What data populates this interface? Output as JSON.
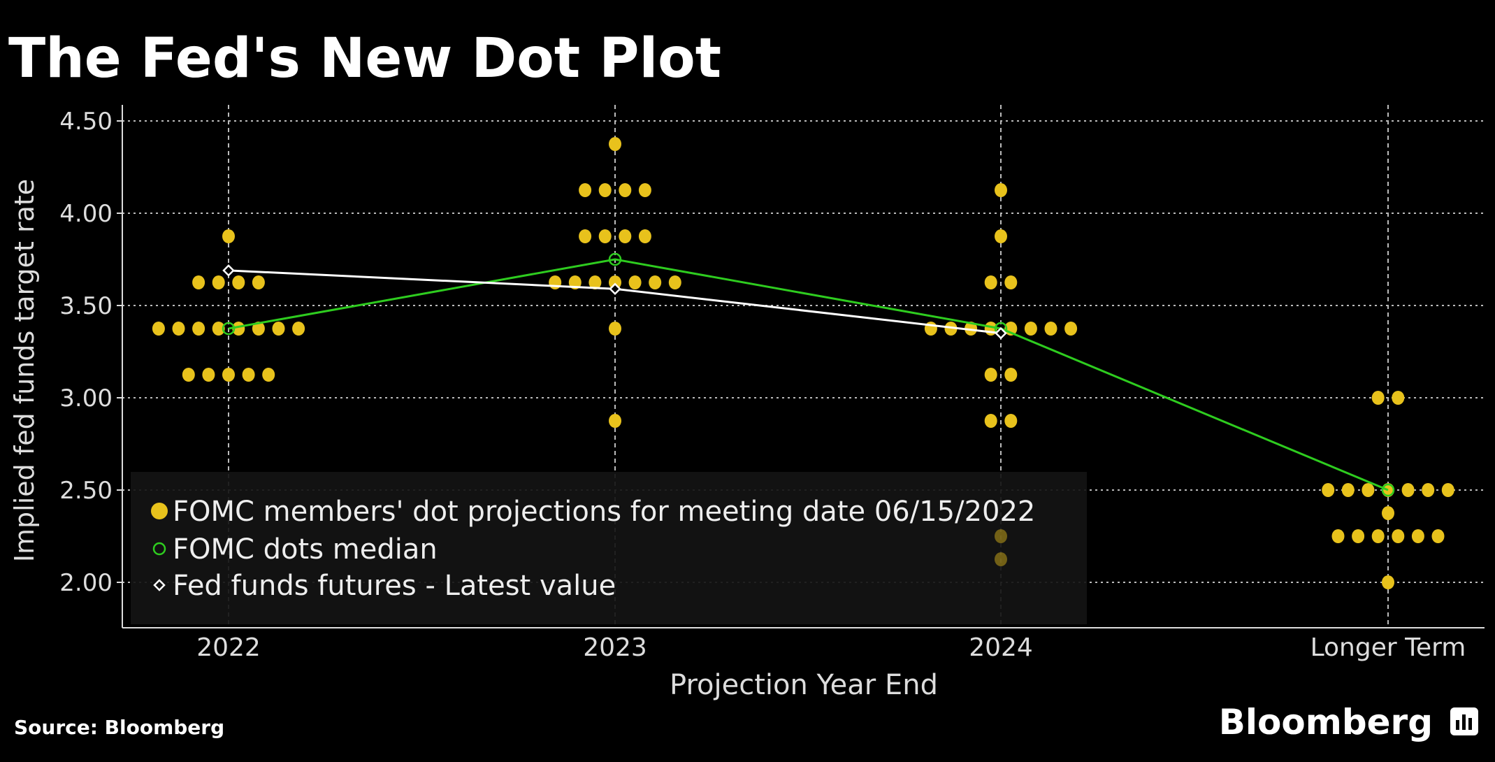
{
  "chart_data": {
    "type": "scatter",
    "title": "The Fed's New Dot Plot",
    "xlabel": "Projection Year End",
    "ylabel": "Implied fed funds target rate",
    "categories": [
      "2022",
      "2023",
      "2024",
      "Longer Term"
    ],
    "ylim": [
      2.0,
      4.5
    ],
    "yticks": [
      "2.00",
      "2.50",
      "3.00",
      "3.50",
      "4.00",
      "4.50"
    ],
    "grid": true,
    "legend_placement": "bottom-left",
    "series": [
      {
        "name": "FOMC members' dot projections for meeting date 06/15/2022",
        "color": "#e8c21c",
        "dots": [
          [
            [
              3.875,
              1
            ],
            [
              3.625,
              4
            ],
            [
              3.375,
              8
            ],
            [
              3.125,
              5
            ]
          ],
          [
            [
              4.375,
              1
            ],
            [
              4.125,
              4
            ],
            [
              3.875,
              4
            ],
            [
              3.625,
              7
            ],
            [
              3.375,
              1
            ],
            [
              2.875,
              1
            ]
          ],
          [
            [
              4.125,
              1
            ],
            [
              3.875,
              1
            ],
            [
              3.625,
              2
            ],
            [
              3.375,
              8
            ],
            [
              3.125,
              2
            ],
            [
              2.875,
              2
            ],
            [
              2.25,
              1
            ],
            [
              2.125,
              1
            ]
          ],
          [
            [
              3.0,
              2
            ],
            [
              2.5,
              7
            ],
            [
              2.375,
              1
            ],
            [
              2.25,
              6
            ],
            [
              2.0,
              1
            ]
          ]
        ]
      },
      {
        "name": "FOMC dots median",
        "color": "#2ecc1f",
        "values": [
          3.375,
          3.75,
          3.375,
          2.5
        ]
      },
      {
        "name": "Fed funds futures - Latest value",
        "color": "#ffffff",
        "values": [
          3.69,
          3.59,
          3.35,
          null
        ]
      }
    ]
  },
  "footer": {
    "source": "Source: Bloomberg",
    "brand": "Bloomberg"
  }
}
